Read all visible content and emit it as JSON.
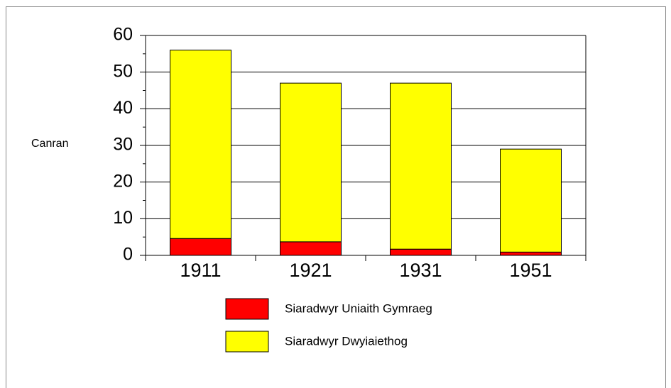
{
  "chart_data": {
    "type": "stacked_bar",
    "y_label": "Canran",
    "categories": [
      "1911",
      "1921",
      "1931",
      "1951"
    ],
    "series": [
      {
        "name": "Siaradwyr Uniaith Gymraeg",
        "color": "#ff0000",
        "values": [
          4.6,
          3.7,
          1.7,
          0.9
        ]
      },
      {
        "name": "Siaradwyr Dwyiaiethog",
        "color": "#ffff00",
        "values": [
          51.4,
          43.3,
          45.3,
          28.1
        ]
      }
    ],
    "ylim": [
      0,
      60
    ],
    "yticks": [
      0,
      10,
      20,
      30,
      40,
      50,
      60
    ],
    "yminorticks": [
      5,
      15,
      25,
      35,
      45,
      55
    ],
    "grid": true
  }
}
